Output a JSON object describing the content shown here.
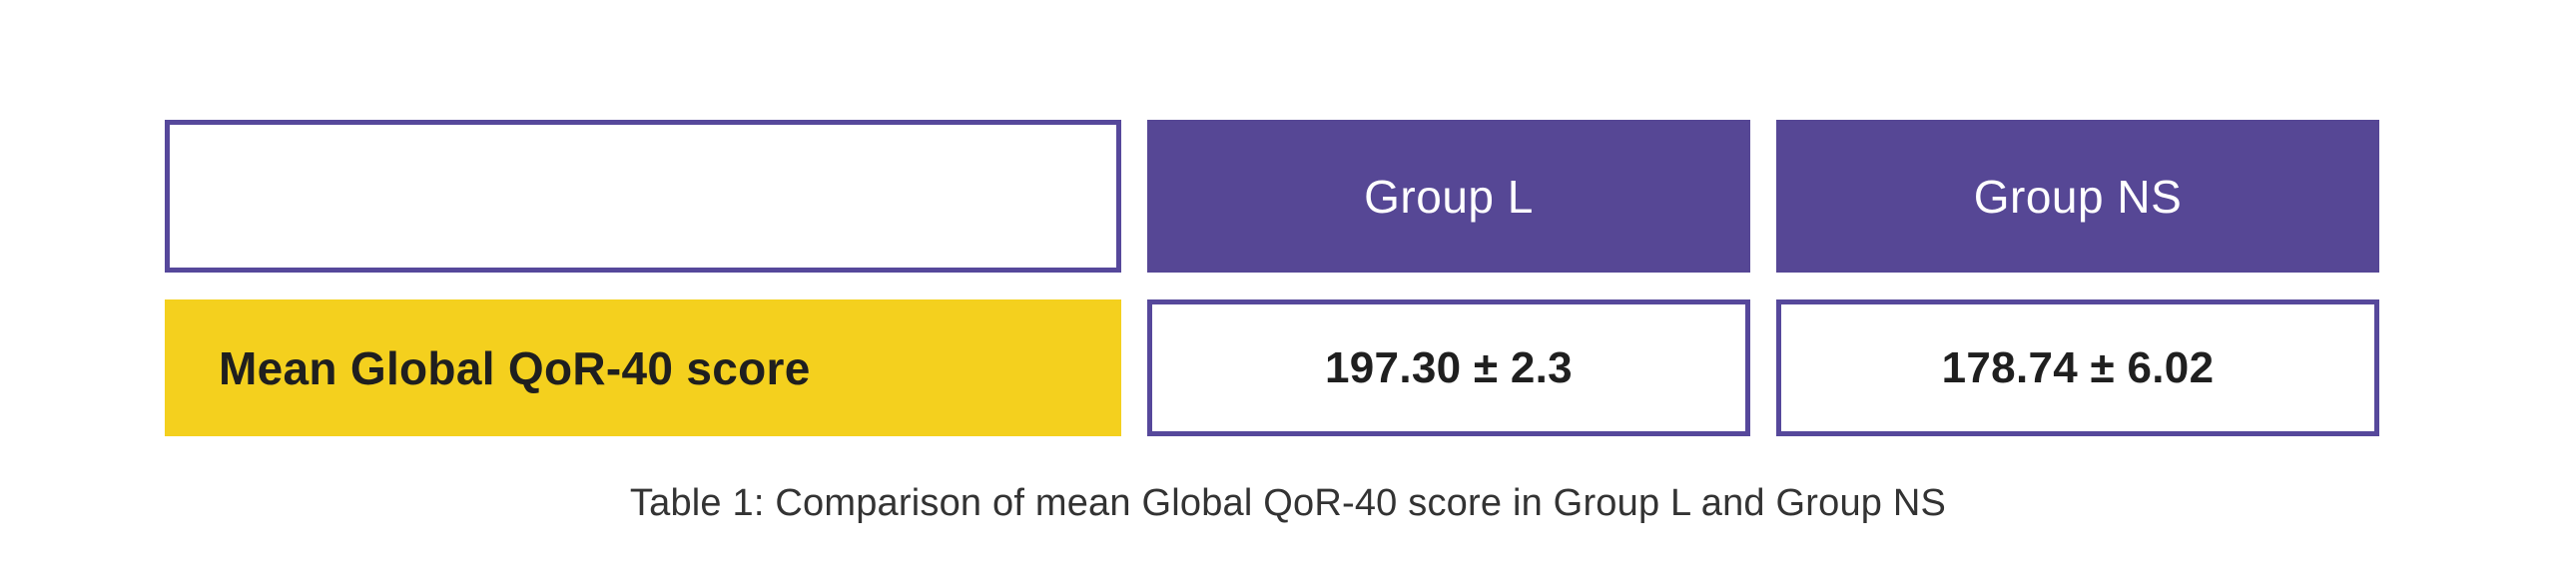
{
  "table": {
    "headers": {
      "blank": "",
      "group_l": "Group L",
      "group_ns": "Group NS"
    },
    "row": {
      "label": "Mean Global QoR-40 score",
      "group_l_value": "197.30 ± 2.3",
      "group_ns_value": "178.74 ± 6.02"
    }
  },
  "caption": "Table 1: Comparison of mean Global QoR-40 score in Group L and Group NS",
  "colors": {
    "header_purple": "#564795",
    "border_purple": "#56489B",
    "label_yellow": "#F4D01E",
    "text_dark": "#1F1F1F",
    "caption_text": "#333333"
  },
  "chart_data": {
    "type": "table",
    "columns": [
      "",
      "Group L",
      "Group NS"
    ],
    "rows": [
      [
        "Mean Global QoR-40 score",
        "197.30 ± 2.3",
        "178.74 ± 6.02"
      ]
    ],
    "title": "Table 1: Comparison of mean Global QoR-40 score in Group L and Group NS"
  }
}
